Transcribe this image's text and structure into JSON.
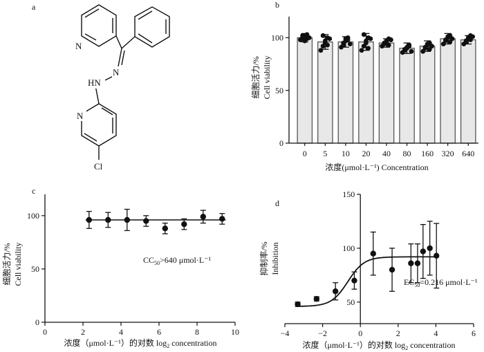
{
  "panels": {
    "a": {
      "label": "a",
      "structure_caption": "",
      "atoms": {
        "N1": "N",
        "N2": "N",
        "NH": "HN",
        "N3": "N",
        "Cl": "Cl"
      }
    }
  },
  "chart_data": [
    {
      "id": "b",
      "panel_label": "b",
      "type": "bar",
      "categories": [
        "0",
        "5",
        "10",
        "20",
        "40",
        "80",
        "160",
        "320",
        "640"
      ],
      "values": [
        100,
        96,
        96,
        96,
        95,
        90,
        92,
        99,
        98
      ],
      "errors": [
        4,
        7,
        5,
        8,
        4,
        5,
        5,
        5,
        4
      ],
      "points": [
        [
          98,
          100,
          101,
          99,
          102,
          97,
          103,
          100
        ],
        [
          88,
          92,
          95,
          100,
          102,
          97,
          93,
          99
        ],
        [
          91,
          95,
          99,
          100,
          93,
          97,
          98,
          94
        ],
        [
          88,
          92,
          97,
          100,
          103,
          95,
          90,
          99
        ],
        [
          92,
          95,
          97,
          99,
          94,
          96,
          93,
          98
        ],
        [
          86,
          89,
          91,
          93,
          88,
          90,
          92,
          87
        ],
        [
          87,
          90,
          93,
          95,
          91,
          94,
          89,
          92
        ],
        [
          94,
          97,
          100,
          102,
          98,
          101,
          96,
          99
        ],
        [
          94,
          97,
          99,
          102,
          96,
          100,
          98,
          101
        ]
      ],
      "ylabel_cn": "细胞活力/%",
      "ylabel_en": "Cell viability",
      "xlabel": "浓度(μmol·L⁻¹)  Concentration",
      "yticks": [
        "0",
        "50",
        "100"
      ],
      "ylim": [
        0,
        120
      ]
    },
    {
      "id": "c",
      "panel_label": "c",
      "type": "scatter",
      "x": [
        2.32,
        3.32,
        4.32,
        5.32,
        6.32,
        7.32,
        8.32,
        9.32
      ],
      "y": [
        96,
        96,
        96,
        95,
        88,
        92,
        99,
        97
      ],
      "errors": [
        8,
        7,
        10,
        5,
        5,
        5,
        6,
        5
      ],
      "fit_y": 96,
      "ylabel_cn": "细胞活力/%",
      "ylabel_en": "Cell viability",
      "xlabel_prefix": "浓度（μmol·L⁻¹）的对数  log",
      "xlabel_sub": "2",
      "xlabel_suffix": " concentration",
      "annotation_prefix": "CC",
      "annotation_sub": "50",
      "annotation_suffix": ">640 μmol·L⁻¹",
      "xticks": [
        "0",
        "2",
        "4",
        "6",
        "8",
        "10"
      ],
      "yticks": [
        "0",
        "50",
        "100"
      ],
      "xlim": [
        0,
        10
      ],
      "ylim": [
        0,
        120
      ]
    },
    {
      "id": "d",
      "panel_label": "d",
      "type": "scatter",
      "x": [
        -3.32,
        -2.32,
        -1.32,
        -0.32,
        0.68,
        1.68,
        2.68,
        3.03,
        3.32,
        3.68,
        4.03
      ],
      "y": [
        48,
        53,
        60,
        70,
        95,
        80,
        86,
        86,
        97,
        100,
        93
      ],
      "errors": [
        2,
        2,
        8,
        8,
        20,
        20,
        18,
        18,
        25,
        25,
        30
      ],
      "fit": {
        "bottom": 46,
        "top": 92,
        "logEC50": -0.665,
        "hill": 1
      },
      "ylabel_cn": "抑制率/%",
      "ylabel_en": "Inhibition",
      "xlabel_prefix": "浓度（μmol·L⁻¹）的对数  log",
      "xlabel_sub": "2",
      "xlabel_suffix": " concentration",
      "annotation_prefix": "EC",
      "annotation_sub": "50",
      "annotation_suffix": "=0.216 μmol·L⁻¹",
      "xticks": [
        "−4",
        "−2",
        "0",
        "2",
        "4",
        "6"
      ],
      "yticks": [
        "50",
        "100",
        "150"
      ],
      "xlim": [
        -4,
        6
      ],
      "ylim": [
        30,
        150
      ]
    }
  ]
}
